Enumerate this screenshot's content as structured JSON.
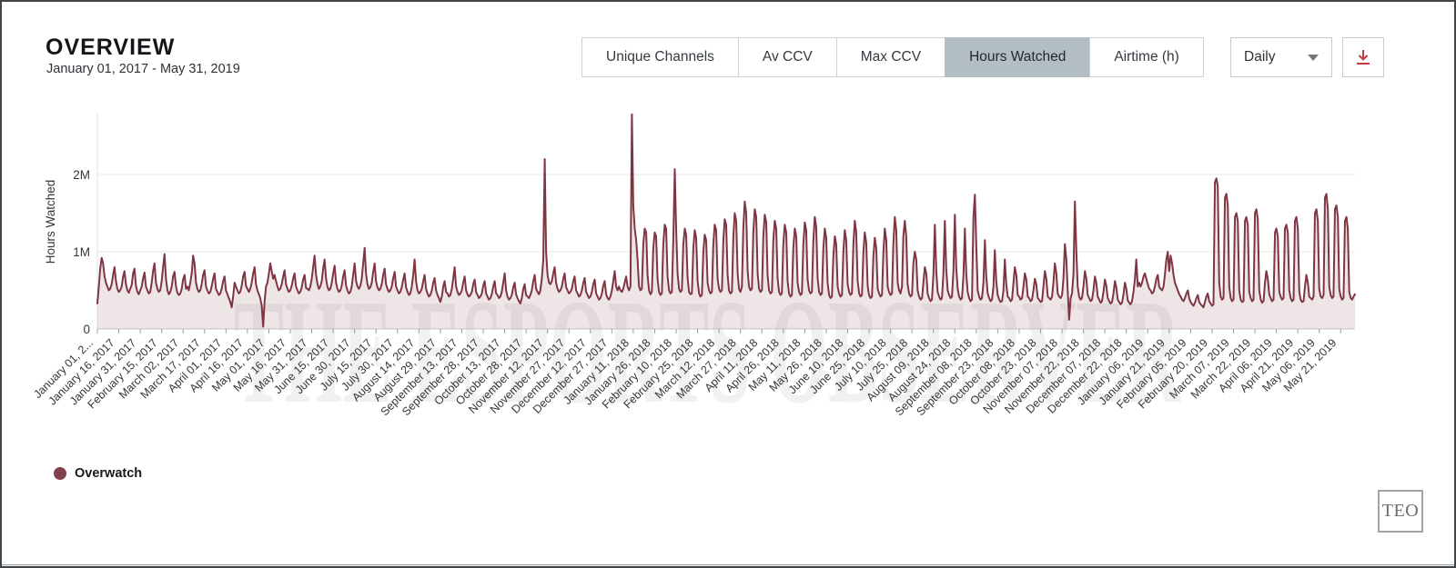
{
  "header": {
    "title": "OVERVIEW",
    "date_range": "January 01, 2017 - May 31, 2019"
  },
  "toolbar": {
    "tabs": [
      {
        "label": "Unique Channels",
        "selected": false
      },
      {
        "label": "Av CCV",
        "selected": false
      },
      {
        "label": "Max CCV",
        "selected": false
      },
      {
        "label": "Hours Watched",
        "selected": true
      },
      {
        "label": "Airtime (h)",
        "selected": false
      }
    ],
    "interval_select": {
      "value": "Daily"
    },
    "download_color": "#c23a40"
  },
  "legend": {
    "items": [
      {
        "label": "Overwatch",
        "color": "#82414d"
      }
    ]
  },
  "footer_logo": "TEO",
  "chart_data": {
    "type": "area",
    "title": "",
    "ylabel": "Hours Watched",
    "unit": "M",
    "ylim": [
      0,
      2.9
    ],
    "yticks": [
      {
        "label": "0",
        "value": 0
      },
      {
        "label": "1M",
        "value": 1
      },
      {
        "label": "2M",
        "value": 2
      }
    ],
    "grid": true,
    "legend_position": "bottom-left",
    "watermark": "THE ESPORTS OBSERVER",
    "x_tick_step_days": 15,
    "x_tick_labels": [
      "January 01, 2...",
      "January 16, 2017",
      "January 31, 2017",
      "February 15, 2017",
      "March 02, 2017",
      "March 17, 2017",
      "April 01, 2017",
      "April 16, 2017",
      "May 01, 2017",
      "May 16, 2017",
      "May 31, 2017",
      "June 15, 2017",
      "June 30, 2017",
      "July 15, 2017",
      "July 30, 2017",
      "August 14, 2017",
      "August 29, 2017",
      "September 13, 2017",
      "September 28, 2017",
      "October 13, 2017",
      "October 28, 2017",
      "November 12, 2017",
      "November 27, 2017",
      "December 12, 2017",
      "December 27, 2017",
      "January 11, 2018",
      "January 26, 2018",
      "February 10, 2018",
      "February 25, 2018",
      "March 12, 2018",
      "March 27, 2018",
      "April 11, 2018",
      "April 26, 2018",
      "May 11, 2018",
      "May 26, 2018",
      "June 10, 2018",
      "June 25, 2018",
      "July 10, 2018",
      "July 25, 2018",
      "August 09, 2018",
      "August 24, 2018",
      "September 08, 2018",
      "September 23, 2018",
      "October 08, 2018",
      "October 23, 2018",
      "November 07, 2018",
      "November 22, 2018",
      "December 07, 2018",
      "December 22, 2018",
      "January 06, 2019",
      "January 21, 2019",
      "February 05, 2019",
      "February 20, 2019",
      "March 07, 2019",
      "March 22, 2019",
      "April 06, 2019",
      "April 21, 2019",
      "May 06, 2019",
      "May 21, 2019"
    ],
    "series": [
      {
        "name": "Overwatch",
        "line_color": "#7f3642",
        "fill_color": "rgba(127,54,66,0.13)",
        "values_unit": "millions of hours watched per day",
        "values": [
          0.33,
          0.55,
          0.78,
          0.92,
          0.85,
          0.68,
          0.6,
          0.55,
          0.5,
          0.52,
          0.58,
          0.7,
          0.8,
          0.62,
          0.52,
          0.48,
          0.5,
          0.55,
          0.68,
          0.75,
          0.58,
          0.5,
          0.47,
          0.52,
          0.57,
          0.72,
          0.78,
          0.56,
          0.48,
          0.45,
          0.5,
          0.55,
          0.66,
          0.73,
          0.55,
          0.5,
          0.46,
          0.48,
          0.6,
          0.75,
          0.85,
          0.6,
          0.52,
          0.48,
          0.5,
          0.62,
          0.8,
          0.97,
          0.65,
          0.5,
          0.45,
          0.48,
          0.55,
          0.68,
          0.74,
          0.55,
          0.47,
          0.44,
          0.46,
          0.52,
          0.64,
          0.7,
          0.52,
          0.55,
          0.5,
          0.6,
          0.72,
          0.95,
          0.85,
          0.6,
          0.52,
          0.48,
          0.5,
          0.58,
          0.7,
          0.76,
          0.55,
          0.5,
          0.46,
          0.48,
          0.55,
          0.65,
          0.72,
          0.52,
          0.48,
          0.44,
          0.46,
          0.52,
          0.62,
          0.68,
          0.5,
          0.45,
          0.4,
          0.35,
          0.28,
          0.42,
          0.6,
          0.55,
          0.5,
          0.46,
          0.48,
          0.56,
          0.68,
          0.74,
          0.56,
          0.52,
          0.48,
          0.52,
          0.6,
          0.72,
          0.8,
          0.58,
          0.5,
          0.45,
          0.4,
          0.3,
          0.03,
          0.35,
          0.55,
          0.6,
          0.72,
          0.85,
          0.75,
          0.65,
          0.7,
          0.62,
          0.55,
          0.5,
          0.52,
          0.58,
          0.68,
          0.76,
          0.58,
          0.52,
          0.48,
          0.5,
          0.56,
          0.66,
          0.72,
          0.55,
          0.5,
          0.46,
          0.48,
          0.54,
          0.64,
          0.7,
          0.53,
          0.52,
          0.5,
          0.55,
          0.65,
          0.8,
          0.95,
          0.7,
          0.58,
          0.52,
          0.55,
          0.62,
          0.78,
          0.9,
          0.65,
          0.55,
          0.5,
          0.52,
          0.6,
          0.72,
          0.82,
          0.6,
          0.52,
          0.48,
          0.5,
          0.56,
          0.68,
          0.76,
          0.56,
          0.5,
          0.46,
          0.48,
          0.55,
          0.7,
          0.85,
          0.62,
          0.55,
          0.52,
          0.56,
          0.65,
          0.85,
          1.05,
          0.72,
          0.58,
          0.52,
          0.54,
          0.6,
          0.74,
          0.85,
          0.62,
          0.54,
          0.5,
          0.52,
          0.58,
          0.7,
          0.78,
          0.58,
          0.52,
          0.48,
          0.5,
          0.55,
          0.66,
          0.74,
          0.55,
          0.5,
          0.46,
          0.48,
          0.54,
          0.64,
          0.72,
          0.54,
          0.48,
          0.44,
          0.46,
          0.55,
          0.7,
          0.9,
          0.62,
          0.5,
          0.46,
          0.48,
          0.52,
          0.62,
          0.7,
          0.52,
          0.46,
          0.42,
          0.44,
          0.5,
          0.6,
          0.66,
          0.5,
          0.44,
          0.4,
          0.35,
          0.42,
          0.55,
          0.62,
          0.48,
          0.46,
          0.42,
          0.44,
          0.52,
          0.65,
          0.8,
          0.55,
          0.48,
          0.44,
          0.46,
          0.5,
          0.6,
          0.68,
          0.5,
          0.45,
          0.42,
          0.44,
          0.48,
          0.58,
          0.64,
          0.48,
          0.44,
          0.4,
          0.42,
          0.46,
          0.56,
          0.62,
          0.46,
          0.42,
          0.38,
          0.4,
          0.45,
          0.55,
          0.62,
          0.46,
          0.44,
          0.4,
          0.42,
          0.48,
          0.6,
          0.72,
          0.5,
          0.42,
          0.38,
          0.4,
          0.44,
          0.54,
          0.6,
          0.45,
          0.4,
          0.36,
          0.33,
          0.4,
          0.52,
          0.58,
          0.44,
          0.42,
          0.4,
          0.44,
          0.5,
          0.62,
          0.7,
          0.52,
          0.48,
          0.45,
          0.5,
          0.65,
          0.9,
          2.2,
          1.0,
          0.7,
          0.6,
          0.58,
          0.62,
          0.72,
          0.8,
          0.6,
          0.52,
          0.48,
          0.5,
          0.55,
          0.65,
          0.72,
          0.54,
          0.5,
          0.46,
          0.48,
          0.52,
          0.62,
          0.68,
          0.5,
          0.46,
          0.42,
          0.44,
          0.5,
          0.6,
          0.66,
          0.48,
          0.44,
          0.4,
          0.42,
          0.48,
          0.58,
          0.64,
          0.46,
          0.42,
          0.38,
          0.4,
          0.46,
          0.56,
          0.62,
          0.45,
          0.4,
          0.38,
          0.42,
          0.5,
          0.62,
          0.75,
          0.55,
          0.5,
          0.55,
          0.5,
          0.48,
          0.52,
          0.6,
          0.68,
          0.55,
          0.5,
          0.55,
          2.78,
          1.6,
          1.3,
          1.15,
          0.9,
          0.55,
          0.5,
          0.52,
          1.1,
          1.3,
          1.25,
          0.7,
          0.5,
          0.45,
          0.48,
          1.05,
          1.25,
          1.2,
          0.65,
          0.48,
          0.44,
          0.46,
          1.1,
          1.35,
          1.3,
          0.68,
          0.5,
          0.46,
          0.48,
          1.15,
          2.07,
          1.3,
          0.72,
          0.52,
          0.48,
          0.5,
          1.1,
          1.3,
          1.22,
          0.66,
          0.48,
          0.45,
          0.46,
          1.05,
          1.28,
          1.18,
          0.62,
          0.46,
          0.42,
          0.44,
          1.0,
          1.22,
          1.15,
          0.6,
          0.5,
          0.46,
          0.48,
          1.1,
          1.35,
          1.28,
          0.65,
          0.52,
          0.48,
          0.5,
          1.15,
          1.42,
          1.35,
          0.7,
          0.5,
          0.46,
          0.48,
          1.2,
          1.5,
          1.4,
          0.72,
          0.52,
          0.48,
          0.55,
          1.3,
          1.65,
          1.5,
          0.75,
          0.55,
          0.5,
          0.52,
          1.25,
          1.55,
          1.45,
          0.72,
          0.52,
          0.48,
          0.5,
          1.2,
          1.48,
          1.38,
          0.7,
          0.5,
          0.46,
          0.48,
          1.15,
          1.4,
          1.3,
          0.66,
          0.48,
          0.44,
          0.46,
          1.1,
          1.35,
          1.25,
          0.62,
          0.46,
          0.42,
          0.44,
          1.05,
          1.3,
          1.2,
          0.6,
          0.48,
          0.44,
          0.46,
          1.1,
          1.38,
          1.28,
          0.64,
          0.5,
          0.46,
          0.48,
          1.15,
          1.45,
          1.32,
          0.66,
          0.48,
          0.44,
          0.46,
          1.05,
          1.3,
          1.18,
          0.6,
          0.44,
          0.4,
          0.42,
          0.95,
          1.2,
          1.1,
          0.55,
          0.46,
          0.42,
          0.44,
          1.0,
          1.28,
          1.15,
          0.58,
          0.48,
          0.44,
          0.46,
          1.1,
          1.4,
          1.25,
          0.62,
          0.46,
          0.42,
          0.44,
          1.0,
          1.25,
          1.12,
          0.56,
          0.44,
          0.4,
          0.42,
          0.95,
          1.18,
          1.05,
          0.52,
          0.46,
          0.42,
          0.44,
          1.0,
          1.3,
          1.15,
          0.55,
          0.48,
          0.44,
          0.46,
          1.1,
          1.45,
          1.28,
          0.6,
          0.5,
          0.46,
          0.55,
          1.2,
          1.4,
          1.2,
          0.58,
          0.46,
          0.42,
          0.44,
          0.85,
          1.0,
          0.9,
          0.5,
          0.42,
          0.38,
          0.4,
          0.6,
          0.8,
          0.72,
          0.46,
          0.4,
          0.36,
          0.38,
          0.7,
          1.35,
          0.75,
          0.48,
          0.42,
          0.38,
          0.4,
          0.72,
          1.4,
          0.78,
          0.5,
          0.44,
          0.4,
          0.42,
          0.75,
          1.48,
          0.8,
          0.52,
          0.42,
          0.38,
          0.4,
          0.68,
          1.3,
          0.72,
          0.48,
          0.4,
          0.36,
          0.38,
          1.45,
          1.74,
          1.1,
          0.5,
          0.42,
          0.38,
          0.4,
          0.6,
          1.15,
          0.68,
          0.46,
          0.4,
          0.36,
          0.38,
          0.55,
          1.02,
          0.62,
          0.44,
          0.38,
          0.35,
          0.36,
          0.5,
          0.9,
          0.58,
          0.42,
          0.4,
          0.36,
          0.38,
          0.6,
          0.8,
          0.7,
          0.44,
          0.42,
          0.38,
          0.4,
          0.55,
          0.72,
          0.64,
          0.42,
          0.4,
          0.36,
          0.38,
          0.5,
          0.65,
          0.58,
          0.4,
          0.38,
          0.35,
          0.36,
          0.55,
          0.75,
          0.65,
          0.42,
          0.4,
          0.38,
          0.42,
          0.6,
          0.85,
          0.72,
          0.46,
          0.42,
          0.4,
          0.44,
          0.65,
          1.1,
          0.9,
          0.5,
          0.12,
          0.4,
          0.46,
          0.7,
          1.65,
          1.0,
          0.55,
          0.42,
          0.38,
          0.4,
          0.55,
          0.75,
          0.65,
          0.44,
          0.4,
          0.36,
          0.38,
          0.5,
          0.68,
          0.6,
          0.42,
          0.38,
          0.34,
          0.36,
          0.48,
          0.64,
          0.56,
          0.4,
          0.36,
          0.33,
          0.35,
          0.46,
          0.62,
          0.54,
          0.38,
          0.35,
          0.32,
          0.34,
          0.45,
          0.6,
          0.52,
          0.37,
          0.34,
          0.32,
          0.36,
          0.48,
          0.65,
          0.9,
          0.55,
          0.6,
          0.55,
          0.6,
          0.68,
          0.72,
          0.65,
          0.58,
          0.52,
          0.5,
          0.46,
          0.48,
          0.55,
          0.65,
          0.7,
          0.55,
          0.52,
          0.5,
          0.55,
          0.7,
          0.9,
          1.0,
          0.75,
          0.95,
          0.85,
          0.7,
          0.6,
          0.55,
          0.5,
          0.45,
          0.42,
          0.38,
          0.36,
          0.4,
          0.46,
          0.5,
          0.4,
          0.35,
          0.32,
          0.3,
          0.34,
          0.4,
          0.44,
          0.35,
          0.32,
          0.3,
          0.28,
          0.35,
          0.42,
          0.46,
          0.36,
          0.33,
          0.3,
          0.32,
          1.9,
          1.95,
          1.85,
          0.6,
          0.42,
          0.38,
          0.4,
          1.7,
          1.75,
          1.6,
          0.55,
          0.4,
          0.36,
          0.38,
          1.45,
          1.5,
          1.4,
          0.5,
          0.38,
          0.35,
          0.36,
          1.4,
          1.45,
          1.35,
          0.48,
          0.4,
          0.36,
          0.38,
          1.5,
          1.55,
          1.42,
          0.5,
          0.38,
          0.34,
          0.36,
          0.6,
          0.75,
          0.65,
          0.45,
          0.4,
          0.36,
          0.38,
          1.25,
          1.3,
          1.2,
          0.48,
          0.42,
          0.38,
          0.4,
          1.3,
          1.35,
          1.25,
          0.5,
          0.4,
          0.36,
          0.38,
          1.4,
          1.45,
          1.3,
          0.48,
          0.38,
          0.35,
          0.36,
          0.55,
          0.7,
          0.6,
          0.42,
          0.4,
          0.38,
          0.42,
          1.5,
          1.55,
          1.4,
          0.52,
          0.42,
          0.4,
          0.44,
          1.7,
          1.75,
          1.55,
          0.55,
          0.44,
          0.4,
          0.42,
          1.55,
          1.6,
          1.45,
          0.52,
          0.42,
          0.38,
          0.4,
          1.4,
          1.45,
          1.3,
          0.48,
          0.4,
          0.38,
          0.42,
          0.45
        ]
      }
    ]
  }
}
